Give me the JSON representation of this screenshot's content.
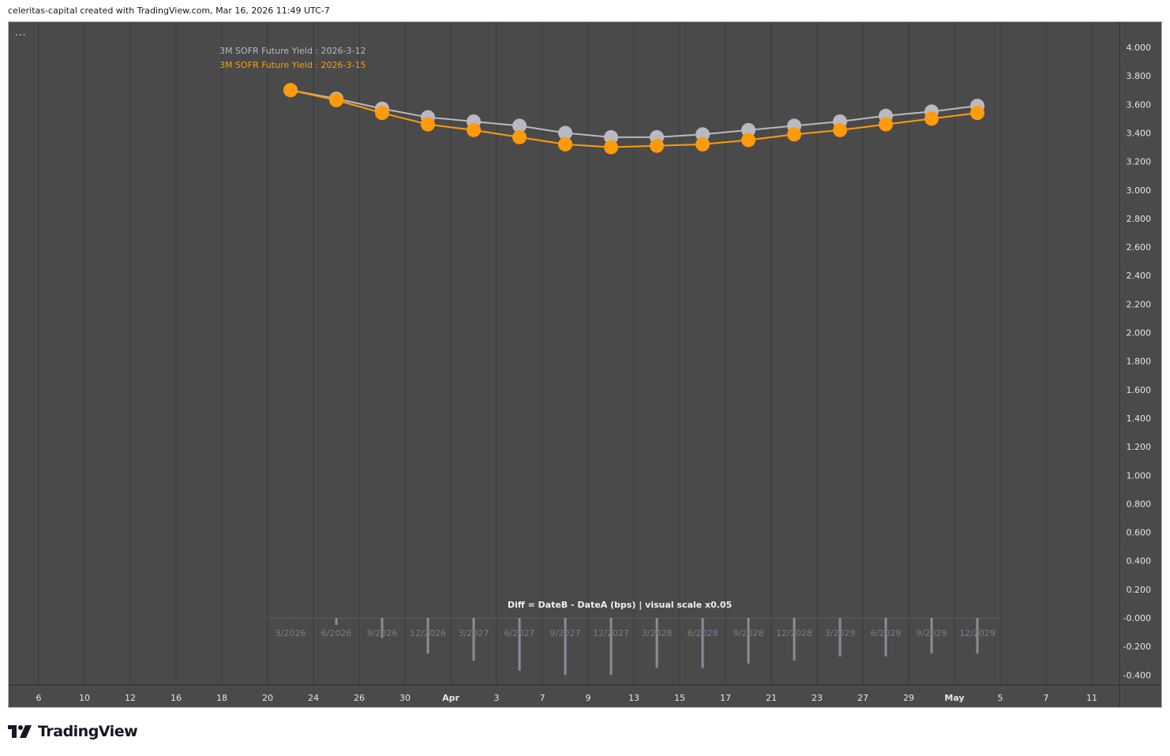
{
  "header": {
    "credit": "celeritas-capital created with TradingView.com, Mar 16, 2026 11:49 UTC-7"
  },
  "footer": {
    "brand": "TradingView"
  },
  "menu": {
    "dots": "..."
  },
  "colors": {
    "background": "#4a4a4a",
    "grid": "#3a3a3a",
    "seriesA": "#b9b9c1",
    "seriesB": "#ff9a0a",
    "diffBar": "#8a8d96",
    "axisText": "#e6e6e6",
    "labelGray": "#7a7d86"
  },
  "chart_data": {
    "type": "line",
    "title": "",
    "x_labels": [
      "6",
      "10",
      "12",
      "16",
      "18",
      "20",
      "24",
      "26",
      "30",
      "Apr",
      "3",
      "7",
      "9",
      "13",
      "15",
      "17",
      "21",
      "23",
      "27",
      "29",
      "May",
      "5",
      "7",
      "11"
    ],
    "x_labels_bold": [
      "Apr",
      "May"
    ],
    "y_ticks": [
      "4.000",
      "3.800",
      "3.600",
      "3.400",
      "3.200",
      "3.000",
      "2.800",
      "2.600",
      "2.400",
      "2.200",
      "2.000",
      "1.800",
      "1.600",
      "1.400",
      "1.200",
      "1.000",
      "0.800",
      "0.600",
      "0.400",
      "0.200",
      "-0.000",
      "-0.200",
      "-0.400"
    ],
    "y_tick_values": [
      4.0,
      3.8,
      3.6,
      3.4,
      3.2,
      3.0,
      2.8,
      2.6,
      2.4,
      2.2,
      2.0,
      1.8,
      1.6,
      1.4,
      1.2,
      1.0,
      0.8,
      0.6,
      0.4,
      0.2,
      0.0,
      -0.2,
      -0.4
    ],
    "ylim": [
      -0.49,
      4.15
    ],
    "contracts": [
      "3/2026",
      "6/2026",
      "9/2026",
      "12/2026",
      "3/2027",
      "6/2027",
      "9/2027",
      "12/2027",
      "3/2028",
      "6/2028",
      "9/2028",
      "12/2028",
      "3/2029",
      "6/2029",
      "9/2029",
      "12/2029"
    ],
    "series": [
      {
        "name": "3M SOFR Future Yield : 2026-3-12",
        "values": [
          3.7,
          3.64,
          3.57,
          3.51,
          3.48,
          3.45,
          3.4,
          3.37,
          3.37,
          3.39,
          3.42,
          3.45,
          3.48,
          3.52,
          3.55,
          3.59
        ]
      },
      {
        "name": "3M SOFR Future Yield : 2026-3-15",
        "values": [
          3.7,
          3.63,
          3.54,
          3.46,
          3.42,
          3.37,
          3.32,
          3.3,
          3.31,
          3.32,
          3.35,
          3.39,
          3.42,
          3.46,
          3.5,
          3.54
        ]
      }
    ],
    "diff": {
      "title": "Diff = DateB - DateA (bps) | visual scale x0.05",
      "values": [
        0,
        -0.05,
        -0.14,
        -0.25,
        -0.3,
        -0.37,
        -0.4,
        -0.4,
        -0.35,
        -0.35,
        -0.32,
        -0.3,
        -0.27,
        -0.27,
        -0.25,
        -0.25
      ]
    }
  }
}
